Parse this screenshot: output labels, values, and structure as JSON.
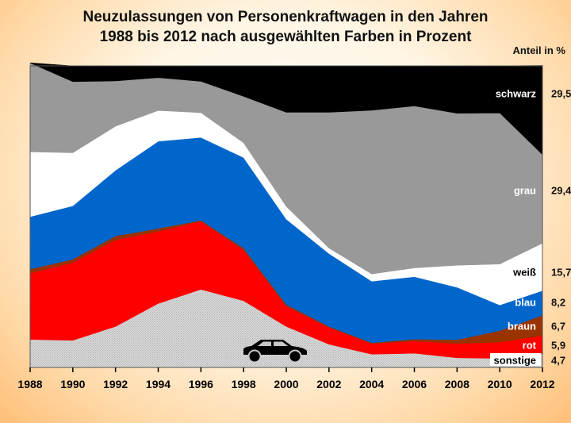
{
  "title_line1": "Neuzulassungen von Personenkraftwagen in den Jahren",
  "title_line2": "1988 bis 2012 nach ausgewählten Farben in Prozent",
  "unit_label": "Anteil in %",
  "chart_data": {
    "type": "area",
    "stacked": true,
    "x": [
      1988,
      1990,
      1992,
      1994,
      1996,
      1998,
      2000,
      2002,
      2004,
      2006,
      2008,
      2010,
      2012
    ],
    "ylim": [
      0,
      100
    ],
    "x_ticks": [
      "1988",
      "1990",
      "1992",
      "1994",
      "1996",
      "1998",
      "2000",
      "2002",
      "2004",
      "2006",
      "2008",
      "2010",
      "2012"
    ],
    "series": [
      {
        "name": "sonstige",
        "color": "#c8c8c8",
        "label_color": "#000000",
        "end_value": "4,7",
        "values": [
          9.3,
          9.0,
          13.6,
          21.2,
          25.9,
          22.1,
          13.6,
          7.7,
          4.4,
          4.7,
          3.2,
          3.0,
          4.7
        ]
      },
      {
        "name": "rot",
        "color": "#ff0000",
        "label_color": "#ffffff",
        "end_value": "5,9",
        "values": [
          21.9,
          25.8,
          28.7,
          23.9,
          22.6,
          16.8,
          6.7,
          5.6,
          3.5,
          4.1,
          4.7,
          5.4,
          5.9
        ]
      },
      {
        "name": "braun",
        "color": "#993300",
        "label_color": "#ffffff",
        "end_value": "6,7",
        "values": [
          1.4,
          1.1,
          1.3,
          1.0,
          0.3,
          0.7,
          0.6,
          0.3,
          0.3,
          0.6,
          1.3,
          3.8,
          6.7
        ]
      },
      {
        "name": "blau",
        "color": "#0066cc",
        "label_color": "#ffffff",
        "end_value": "8,2",
        "values": [
          17.4,
          17.7,
          21.8,
          28.9,
          27.5,
          30.0,
          28.3,
          24.2,
          20.4,
          20.7,
          17.4,
          8.5,
          8.2
        ]
      },
      {
        "name": "weiß",
        "color": "#ffffff",
        "label_color": "#000000",
        "end_value": "15,7",
        "values": [
          21.5,
          17.6,
          14.6,
          10.2,
          8.2,
          4.9,
          4.2,
          1.8,
          2.4,
          2.9,
          7.3,
          13.6,
          15.7
        ]
      },
      {
        "name": "grau",
        "color": "#999999",
        "label_color": "#ffffff",
        "end_value": "29,4",
        "values": [
          29.5,
          23.6,
          15.0,
          10.9,
          10.4,
          15.4,
          31.2,
          45.0,
          54.3,
          53.7,
          50.4,
          50.1,
          29.4
        ]
      },
      {
        "name": "schwarz",
        "color": "#000000",
        "label_color": "#ffffff",
        "end_value": "29,5",
        "values": [
          0,
          5.2,
          5.0,
          3.9,
          5.1,
          10.1,
          15.4,
          15.4,
          14.7,
          13.3,
          15.7,
          15.6,
          29.5
        ]
      }
    ]
  }
}
